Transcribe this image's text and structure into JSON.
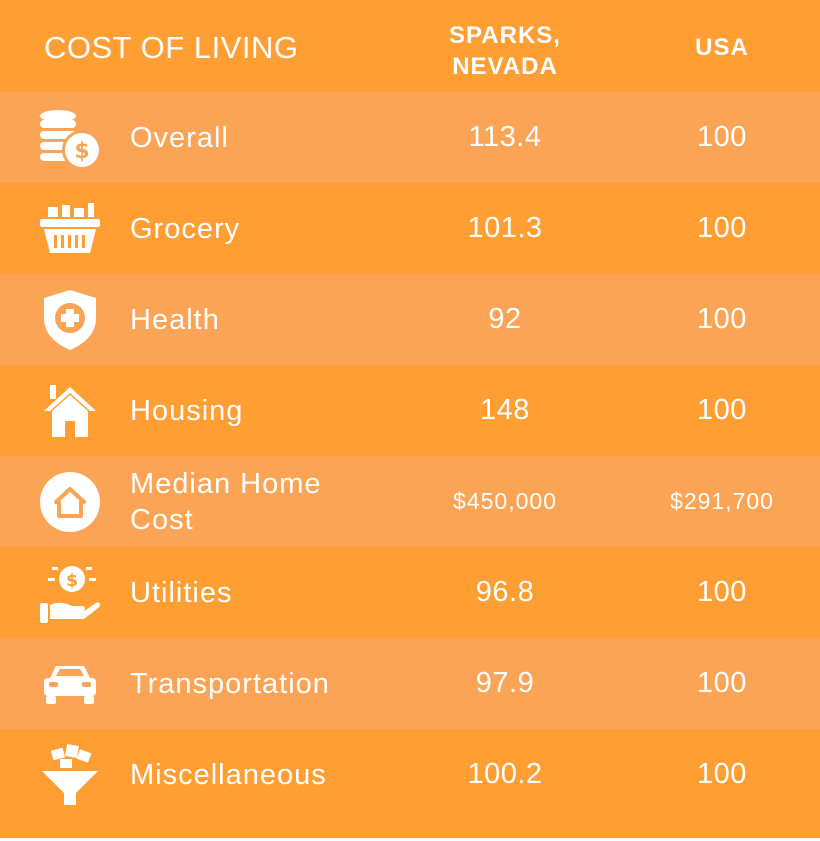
{
  "header": {
    "title": "COST OF LIVING",
    "col_a_line1": "SPARKS,",
    "col_a_line2": "NEVADA",
    "col_b": "USA"
  },
  "chart_data": {
    "type": "table",
    "columns": [
      "COST OF LIVING",
      "SPARKS, NEVADA",
      "USA"
    ],
    "rows": [
      {
        "label": "Overall",
        "icon": "coins-dollar-icon",
        "sparks": "113.4",
        "usa": "100"
      },
      {
        "label": "Grocery",
        "icon": "grocery-basket-icon",
        "sparks": "101.3",
        "usa": "100"
      },
      {
        "label": "Health",
        "icon": "health-shield-icon",
        "sparks": "92",
        "usa": "100"
      },
      {
        "label": "Housing",
        "icon": "house-icon",
        "sparks": "148",
        "usa": "100"
      },
      {
        "label": "Median Home Cost",
        "icon": "home-circle-icon",
        "sparks": "$450,000",
        "usa": "$291,700"
      },
      {
        "label": "Utilities",
        "icon": "hand-coin-icon",
        "sparks": "96.8",
        "usa": "100"
      },
      {
        "label": "Transportation",
        "icon": "car-icon",
        "sparks": "97.9",
        "usa": "100"
      },
      {
        "label": "Miscellaneous",
        "icon": "funnel-icon",
        "sparks": "100.2",
        "usa": "100"
      }
    ]
  },
  "colors": {
    "dark_row": "#ff9e33",
    "light_row": "#fca456",
    "text": "#ffffff"
  }
}
